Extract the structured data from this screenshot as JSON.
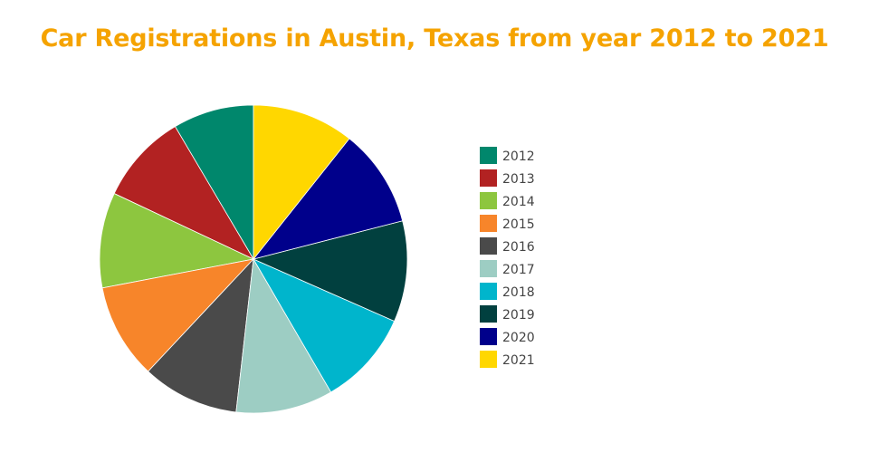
{
  "chart_data": {
    "type": "pie",
    "title": "Car Registrations in Austin, Texas from year 2012 to 2021",
    "categories": [
      "2012",
      "2013",
      "2014",
      "2015",
      "2016",
      "2017",
      "2018",
      "2019",
      "2020",
      "2021"
    ],
    "values": [
      8.5,
      9.5,
      10.0,
      10.0,
      10.2,
      10.2,
      10.0,
      10.6,
      10.3,
      10.7
    ],
    "colors": [
      "#00876c",
      "#b22222",
      "#8dc63f",
      "#f7852a",
      "#4a4a4a",
      "#9dcdc3",
      "#00b5cc",
      "#01403f",
      "#00008b",
      "#ffd700"
    ],
    "legend_position": "right",
    "start": "12 o'clock",
    "direction": "counterclockwise"
  }
}
